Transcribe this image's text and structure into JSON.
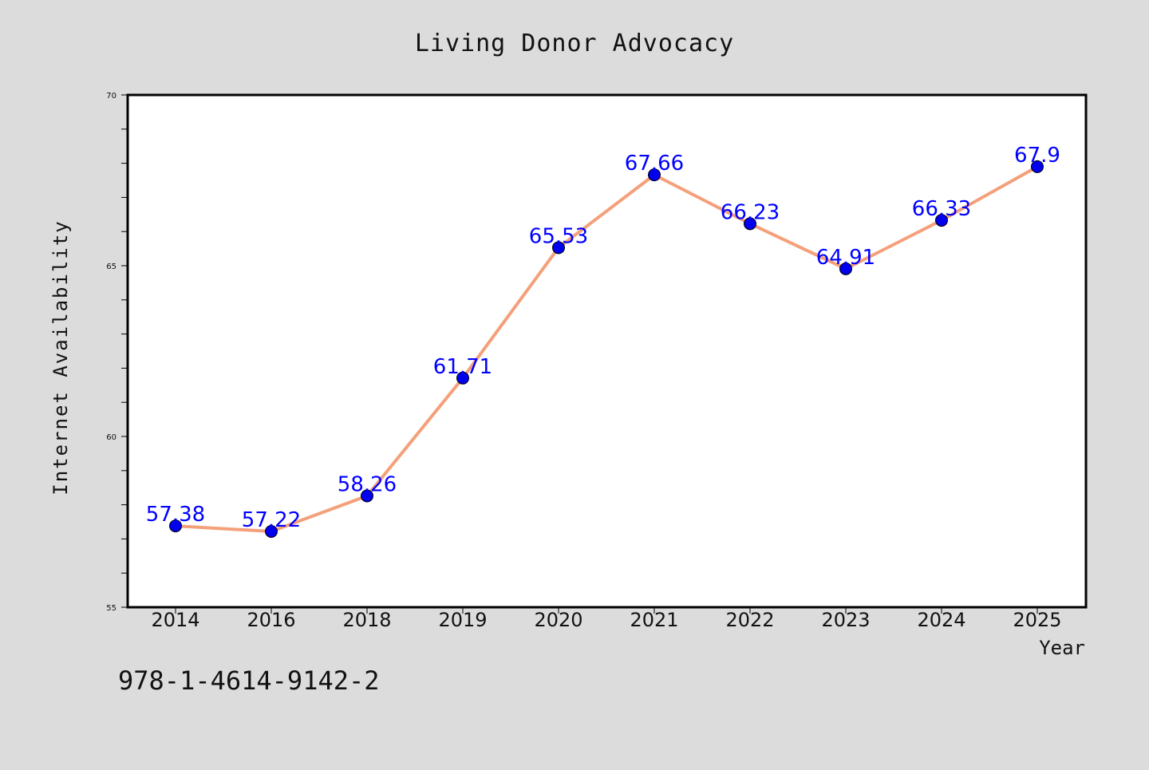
{
  "chart_data": {
    "type": "line",
    "title": "Living Donor Advocacy",
    "xlabel": "Year",
    "ylabel": "Internet Availability",
    "categories": [
      "2014",
      "2016",
      "2018",
      "2019",
      "2020",
      "2021",
      "2022",
      "2023",
      "2024",
      "2025"
    ],
    "series": [
      {
        "values": [
          57.38,
          57.22,
          58.26,
          61.71,
          65.53,
          67.66,
          66.23,
          64.91,
          66.33,
          67.9
        ],
        "data_labels": [
          "57.38",
          "57.22",
          "58.26",
          "61.71",
          "65.53",
          "67.66",
          "66.23",
          "64.91",
          "66.33",
          "67.9"
        ],
        "line_color": "#f4a07a",
        "marker_color": "#0000ee"
      }
    ],
    "ylim": [
      55,
      70
    ],
    "yticks": [
      "55",
      "60",
      "65",
      "70"
    ],
    "grid": false,
    "legend": "none"
  },
  "annotation": "978-1-4614-9142-2",
  "colors": {
    "background": "#dcdcdc",
    "plot_area": "#ffffff",
    "data_label": "#0000ff"
  }
}
